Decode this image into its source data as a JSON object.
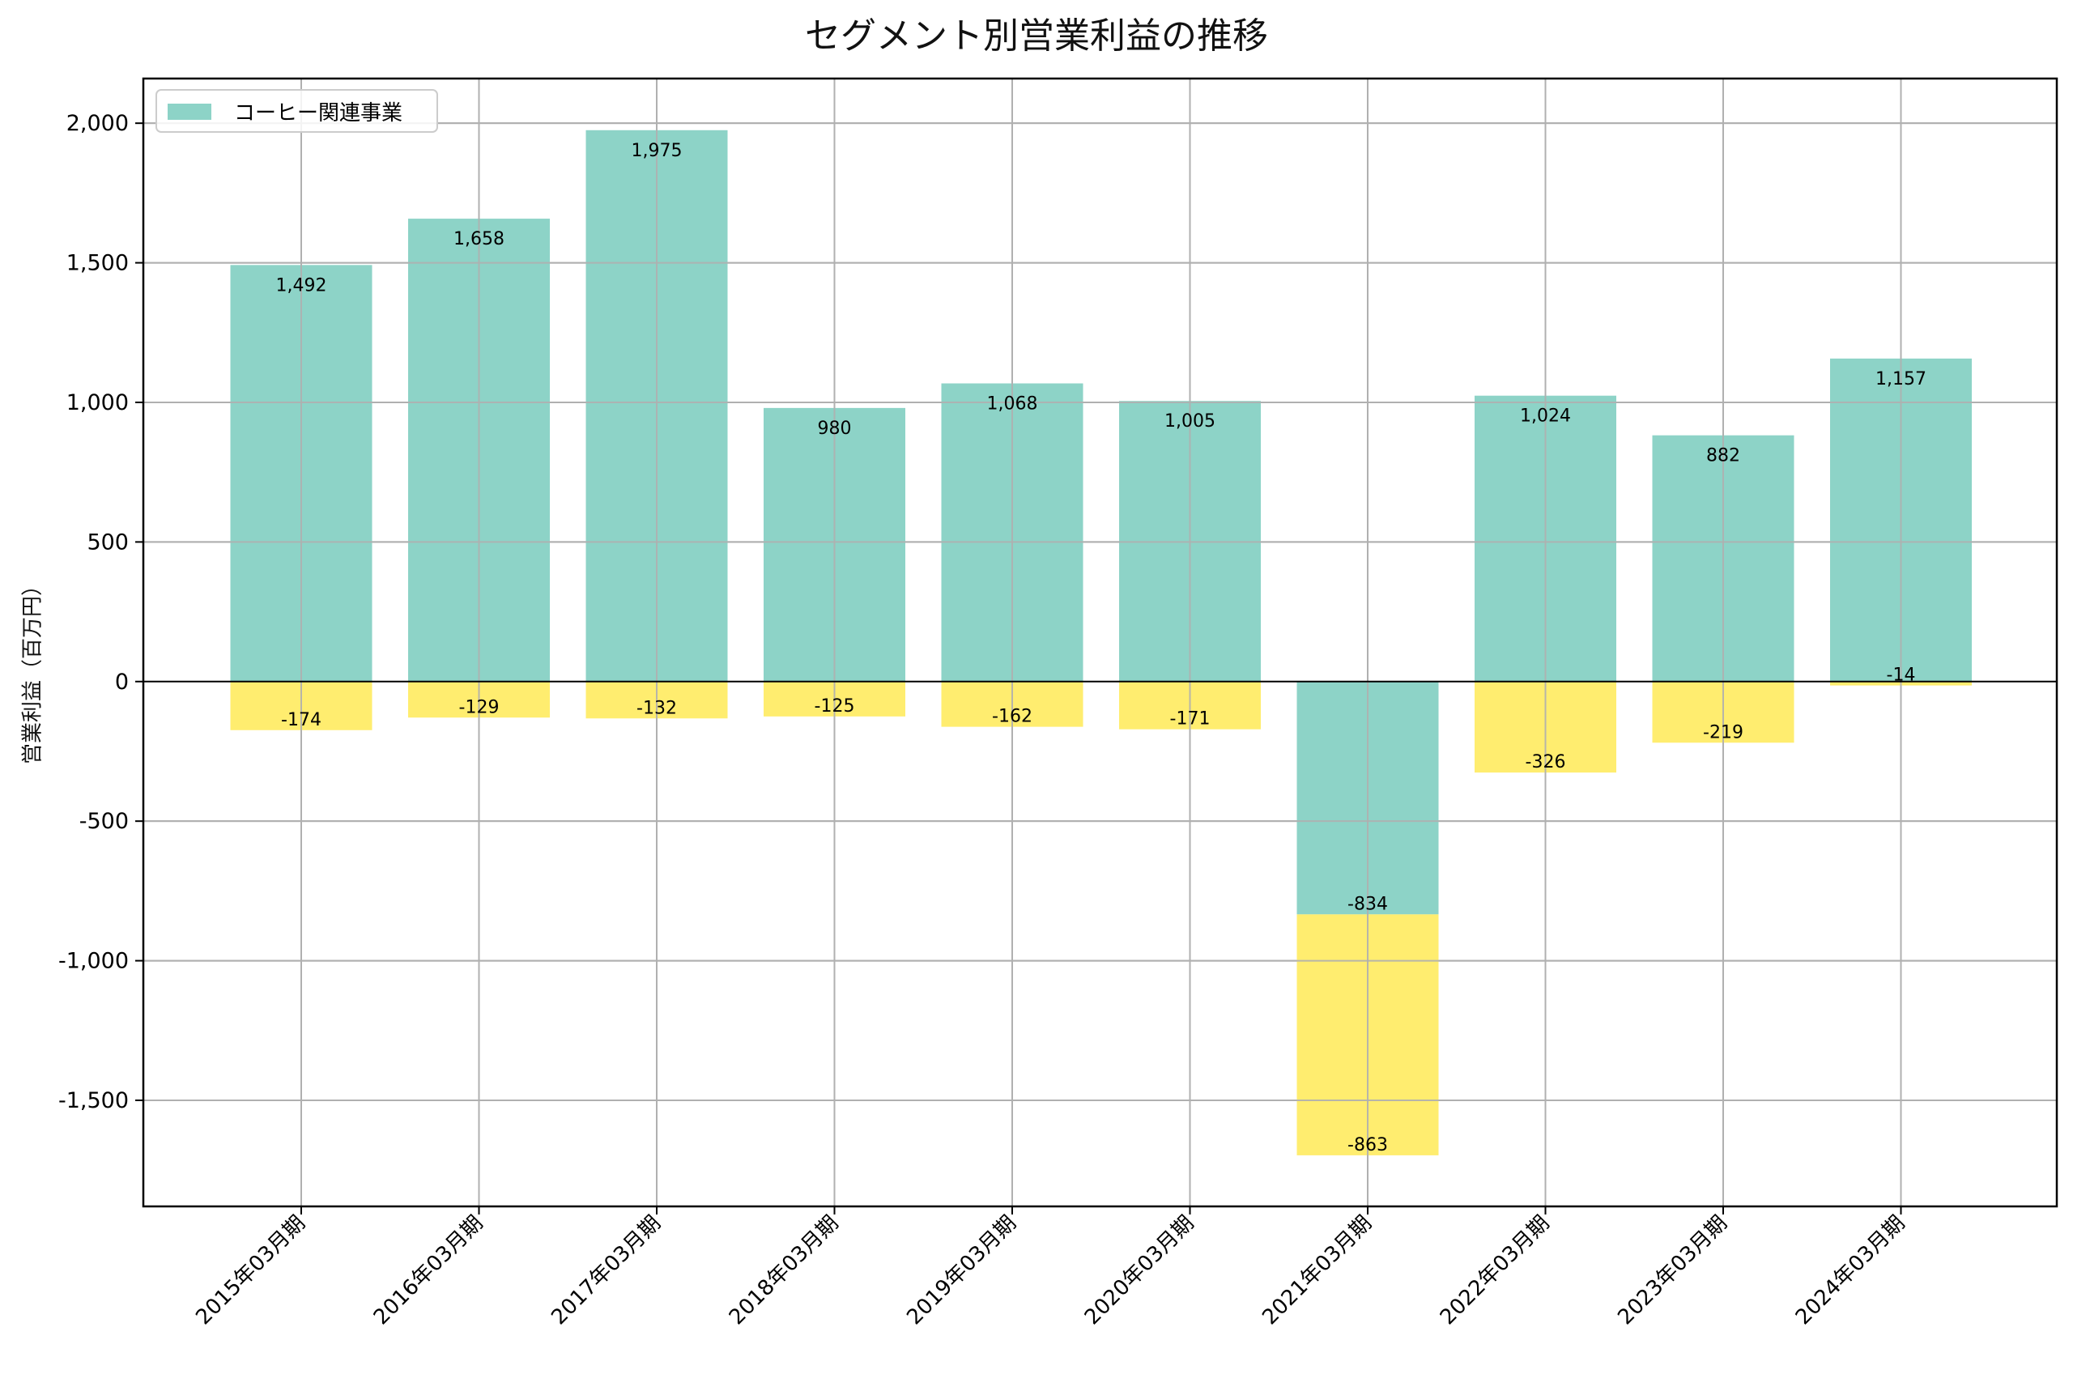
{
  "chart_data": {
    "type": "bar",
    "title": "セグメント別営業利益の推移",
    "xlabel": "",
    "ylabel": "営業利益（百万円）",
    "ylim": [
      -1880,
      2160
    ],
    "yticks": [
      2000,
      1500,
      1000,
      500,
      0,
      -500,
      -1000,
      -1500
    ],
    "ytick_labels": [
      "2,000",
      "1,500",
      "1,000",
      "500",
      "0",
      "-500",
      "-1,000",
      "-1,500"
    ],
    "grid": true,
    "legend_position": "top-left",
    "stacked": true,
    "categories": [
      "2015年03月期",
      "2016年03月期",
      "2017年03月期",
      "2018年03月期",
      "2019年03月期",
      "2020年03月期",
      "2021年03月期",
      "2022年03月期",
      "2023年03月期",
      "2024年03月期"
    ],
    "series": [
      {
        "name": "コーヒー関連事業",
        "color": "#8dd3c7",
        "values": [
          1492,
          1658,
          1975,
          980,
          1068,
          1005,
          -834,
          1024,
          882,
          1157
        ],
        "labels": [
          "1,492",
          "1,658",
          "1,975",
          "980",
          "1,068",
          "1,005",
          "-834",
          "1,024",
          "882",
          "1,157"
        ]
      },
      {
        "color": "#ffed6f",
        "values": [
          -174,
          -129,
          -132,
          -125,
          -162,
          -171,
          -863,
          -326,
          -219,
          -14
        ],
        "labels": [
          "-174",
          "-129",
          "-132",
          "-125",
          "-162",
          "-171",
          "-863",
          "-326",
          "-219",
          "-14"
        ]
      }
    ]
  }
}
